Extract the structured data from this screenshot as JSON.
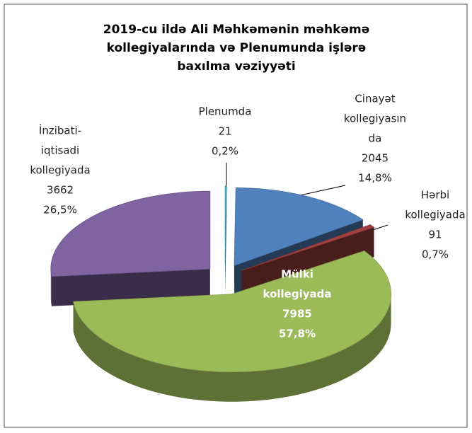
{
  "chart_data": {
    "type": "pie",
    "title": [
      "2019-cu ildə Ali Məhkəmənin məhkəmə",
      "kollegiyalarında və Plenumunda  işlərə",
      "baxılma vəziyyəti"
    ],
    "categories": [
      [
        "Plenumda"
      ],
      [
        "Cinayət",
        "kollegiyasın",
        "da"
      ],
      [
        "Hərbi",
        "kollegiyada"
      ],
      [
        "Mülki",
        "kollegiyada"
      ],
      [
        "İnzibati-",
        "iqtisadi",
        "kollegiyada"
      ]
    ],
    "values": [
      21,
      2045,
      91,
      7985,
      3662
    ],
    "shares": [
      0.2,
      14.8,
      0.7,
      57.8,
      26.5
    ],
    "share_labels": [
      "0,2%",
      "14,8%",
      "0,7%",
      "57,8%",
      "26,5%"
    ],
    "colors": [
      "#4bacc6",
      "#4f81bd",
      "#a0413d",
      "#9bbb59",
      "#8064a2"
    ]
  }
}
